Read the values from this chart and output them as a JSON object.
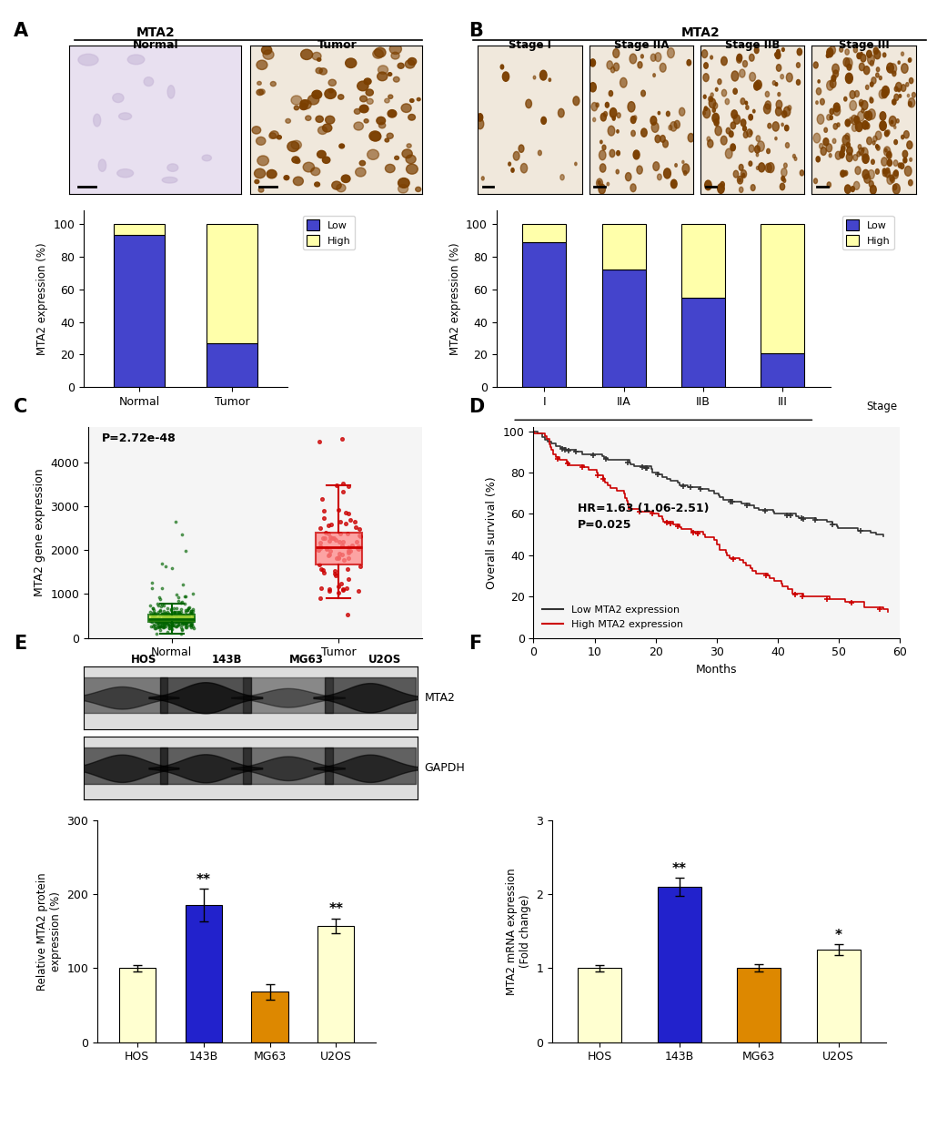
{
  "panel_A": {
    "bar_categories": [
      "Normal",
      "Tumor"
    ],
    "low_values": [
      93,
      27
    ],
    "high_values": [
      7,
      73
    ],
    "bar_color_low": "#4444CC",
    "bar_color_high": "#FFFFAA",
    "ylabel": "MTA2 expression (%)",
    "ylim": [
      0,
      100
    ],
    "yticks": [
      0,
      20,
      40,
      60,
      80,
      100
    ]
  },
  "panel_B": {
    "bar_categories": [
      "I",
      "IIA",
      "IIB",
      "III"
    ],
    "low_values": [
      89,
      72,
      55,
      21
    ],
    "high_values": [
      11,
      28,
      45,
      79
    ],
    "bar_color_low": "#4444CC",
    "bar_color_high": "#FFFFAA",
    "ylabel": "MTA2 expression (%)",
    "ylim": [
      0,
      100
    ],
    "yticks": [
      0,
      20,
      40,
      60,
      80,
      100
    ]
  },
  "panel_C": {
    "normal_color": "#006400",
    "tumor_color": "#CC0000",
    "normal_box_color": "#CCEE44",
    "tumor_box_color": "#FF8888",
    "ylabel": "MTA2 gene expression",
    "pvalue": "P=2.72e-48",
    "ylim": [
      0,
      4800
    ],
    "yticks": [
      0,
      1000,
      2000,
      3000,
      4000
    ],
    "categories": [
      "Normal",
      "Tumor"
    ]
  },
  "panel_D": {
    "ylabel": "Overall survival (%)",
    "xlabel": "Months",
    "ylim": [
      0,
      100
    ],
    "xlim": [
      0,
      60
    ],
    "xticks": [
      0,
      10,
      20,
      30,
      40,
      50,
      60
    ],
    "yticks": [
      0,
      20,
      40,
      60,
      80,
      100
    ],
    "hr_text": "HR=1.63 (1.06-2.51)",
    "p_text": "P=0.025",
    "low_color": "#333333",
    "high_color": "#CC0000",
    "low_label": "Low MTA2 expression",
    "high_label": "High MTA2 expression"
  },
  "panel_E": {
    "categories": [
      "HOS",
      "143B",
      "MG63",
      "U2OS"
    ],
    "values": [
      100,
      185,
      68,
      157
    ],
    "errors": [
      4,
      22,
      10,
      10
    ],
    "colors": [
      "#FFFFD0",
      "#2222CC",
      "#DD8800",
      "#FFFFD0"
    ],
    "ylabel": "Relative MTA2 protein\nexpression (%)",
    "ylim": [
      0,
      300
    ],
    "yticks": [
      0,
      100,
      200,
      300
    ],
    "significance": [
      "",
      "**",
      "",
      "**"
    ],
    "wb_mta2_intensities": [
      0.65,
      0.9,
      0.55,
      0.85
    ],
    "wb_gapdh_intensities": [
      0.8,
      0.82,
      0.7,
      0.8
    ]
  },
  "panel_F": {
    "categories": [
      "HOS",
      "143B",
      "MG63",
      "U2OS"
    ],
    "values": [
      1.0,
      2.1,
      1.0,
      1.25
    ],
    "errors": [
      0.04,
      0.12,
      0.05,
      0.07
    ],
    "colors": [
      "#FFFFD0",
      "#2222CC",
      "#DD8800",
      "#FFFFD0"
    ],
    "ylabel": "MTA2 mRNA expression\n(Fold change)",
    "ylim": [
      0,
      3
    ],
    "yticks": [
      0,
      1,
      2,
      3
    ],
    "significance": [
      "",
      "**",
      "",
      "*"
    ]
  }
}
